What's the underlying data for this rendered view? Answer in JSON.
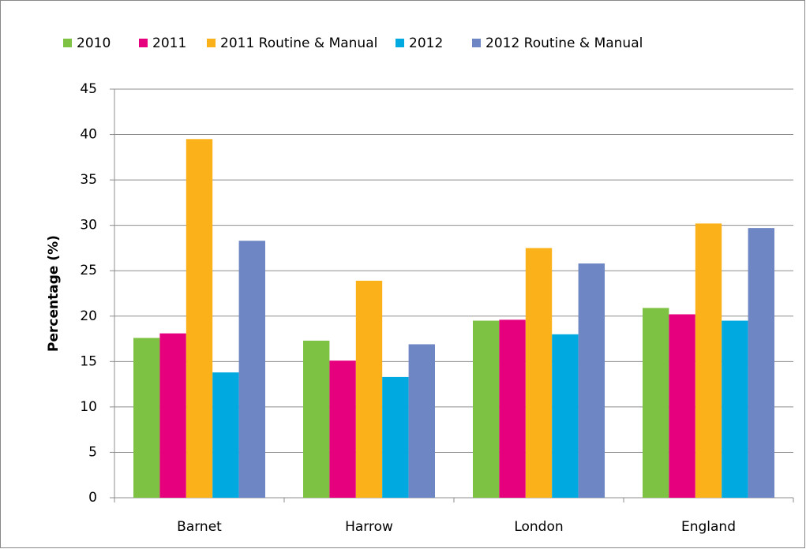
{
  "chart_data": {
    "type": "bar",
    "ylabel": "Percentage (%)",
    "categories": [
      "Barnet",
      "Harrow",
      "London",
      "England"
    ],
    "series": [
      {
        "name": "2010",
        "color": "#7dc242",
        "values": [
          17.6,
          17.3,
          19.5,
          20.9
        ]
      },
      {
        "name": "2011",
        "color": "#e6007e",
        "values": [
          18.1,
          15.1,
          19.6,
          20.2
        ]
      },
      {
        "name": "2011 Routine & Manual",
        "color": "#fbb21a",
        "values": [
          39.5,
          23.9,
          27.5,
          30.2
        ]
      },
      {
        "name": "2012",
        "color": "#00a9e0",
        "values": [
          13.8,
          13.3,
          18.0,
          19.5
        ]
      },
      {
        "name": "2012 Routine & Manual",
        "color": "#6e87c4",
        "values": [
          28.3,
          16.9,
          25.8,
          29.7
        ]
      }
    ],
    "ylim": [
      0,
      45
    ],
    "yticks": [
      0,
      5,
      10,
      15,
      20,
      25,
      30,
      35,
      40,
      45
    ],
    "grid": true,
    "legend": "top"
  }
}
